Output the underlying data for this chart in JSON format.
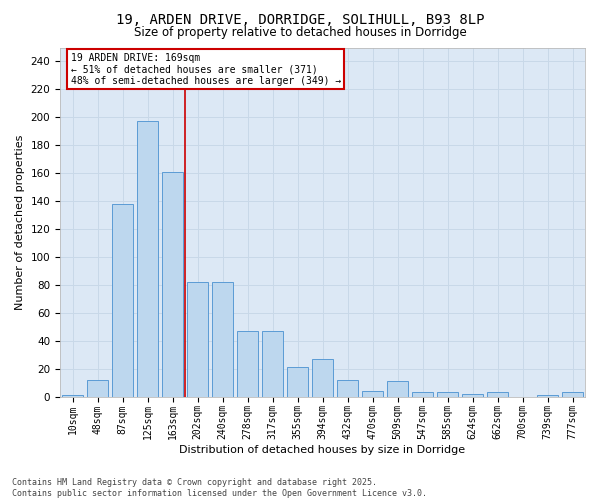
{
  "title1": "19, ARDEN DRIVE, DORRIDGE, SOLIHULL, B93 8LP",
  "title2": "Size of property relative to detached houses in Dorridge",
  "xlabel": "Distribution of detached houses by size in Dorridge",
  "ylabel": "Number of detached properties",
  "categories": [
    "10sqm",
    "48sqm",
    "87sqm",
    "125sqm",
    "163sqm",
    "202sqm",
    "240sqm",
    "278sqm",
    "317sqm",
    "355sqm",
    "394sqm",
    "432sqm",
    "470sqm",
    "509sqm",
    "547sqm",
    "585sqm",
    "624sqm",
    "662sqm",
    "700sqm",
    "739sqm",
    "777sqm"
  ],
  "values": [
    1,
    12,
    138,
    197,
    161,
    82,
    82,
    47,
    47,
    21,
    27,
    12,
    4,
    11,
    3,
    3,
    2,
    3,
    0,
    1,
    3
  ],
  "bar_color": "#bdd7ee",
  "bar_edge_color": "#5b9bd5",
  "annotation_line1": "19 ARDEN DRIVE: 169sqm",
  "annotation_line2": "← 51% of detached houses are smaller (371)",
  "annotation_line3": "48% of semi-detached houses are larger (349) →",
  "annotation_box_color": "#ffffff",
  "annotation_box_edge": "#cc0000",
  "vline_color": "#cc0000",
  "grid_color": "#c8d8e8",
  "background_color": "#dce8f5",
  "ylim": [
    0,
    250
  ],
  "yticks": [
    0,
    20,
    40,
    60,
    80,
    100,
    120,
    140,
    160,
    180,
    200,
    220,
    240
  ],
  "footer1": "Contains HM Land Registry data © Crown copyright and database right 2025.",
  "footer2": "Contains public sector information licensed under the Open Government Licence v3.0."
}
